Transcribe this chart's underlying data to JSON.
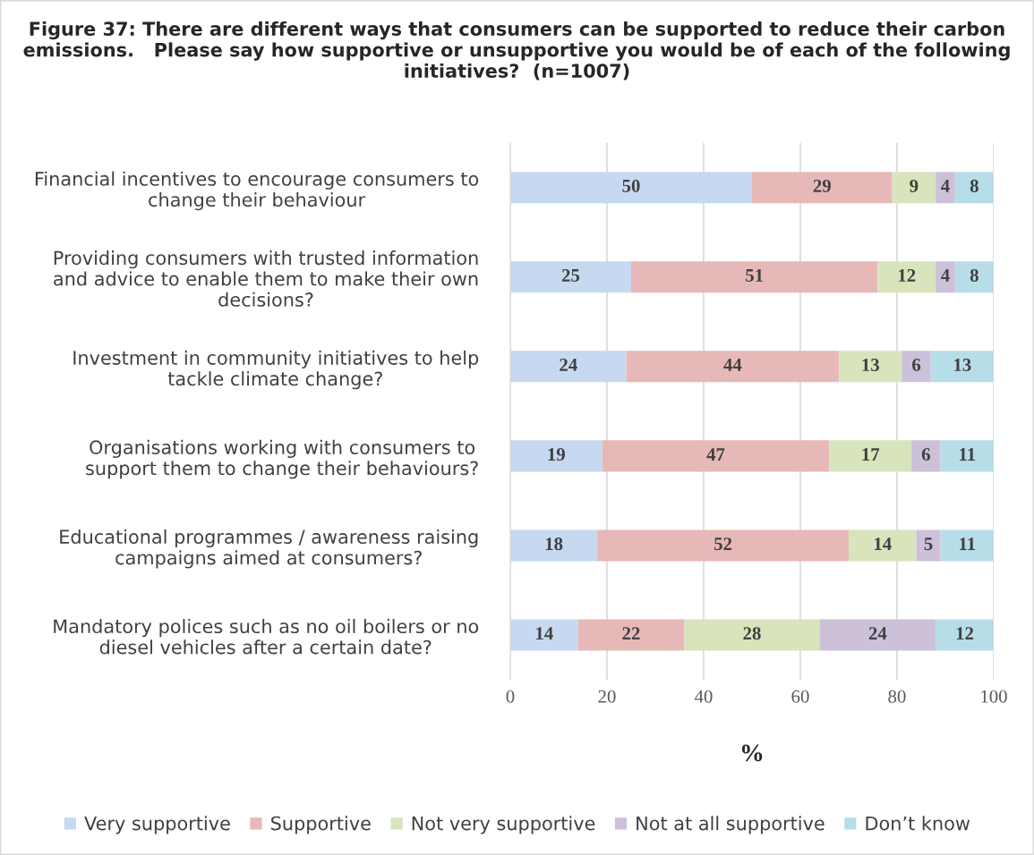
{
  "chart_data": {
    "type": "bar",
    "orientation": "horizontal",
    "stacked": true,
    "data_labels": true,
    "title": "Figure 37: There are different ways that consumers can be supported to reduce their carbon emissions.   Please say how supportive or unsupportive you would be of each of the following initiatives?  (n=1007)",
    "xlabel": "%",
    "categories": [
      "Financial incentives to encourage consumers to\nchange their behaviour",
      "Providing consumers with trusted information\nand advice to enable them to make their own\ndecisions?",
      "Investment in community initiatives to help\ntackle climate change?",
      "Organisations working with consumers to\nsupport them to change their behaviours?",
      "Educational programmes / awareness raising\ncampaigns aimed at consumers?",
      "Mandatory polices such as no oil boilers or no\ndiesel vehicles after a certain date?"
    ],
    "series": [
      {
        "name": "Very supportive",
        "color": "#c6d9f0",
        "values": [
          50,
          25,
          24,
          19,
          18,
          14
        ]
      },
      {
        "name": "Supportive",
        "color": "#e6b9b8",
        "values": [
          29,
          51,
          44,
          47,
          52,
          22
        ]
      },
      {
        "name": "Not very supportive",
        "color": "#d7e4bc",
        "values": [
          9,
          12,
          13,
          17,
          14,
          28
        ]
      },
      {
        "name": "Not at all supportive",
        "color": "#ccc1d9",
        "values": [
          4,
          4,
          6,
          6,
          5,
          24
        ]
      },
      {
        "name": "Don’t know",
        "color": "#b7dde8",
        "values": [
          8,
          8,
          13,
          11,
          11,
          12
        ]
      }
    ],
    "xlim": [
      0,
      100
    ],
    "xticks": [
      0,
      20,
      40,
      60,
      80,
      100
    ],
    "grid": "x",
    "legend": "bottom"
  }
}
